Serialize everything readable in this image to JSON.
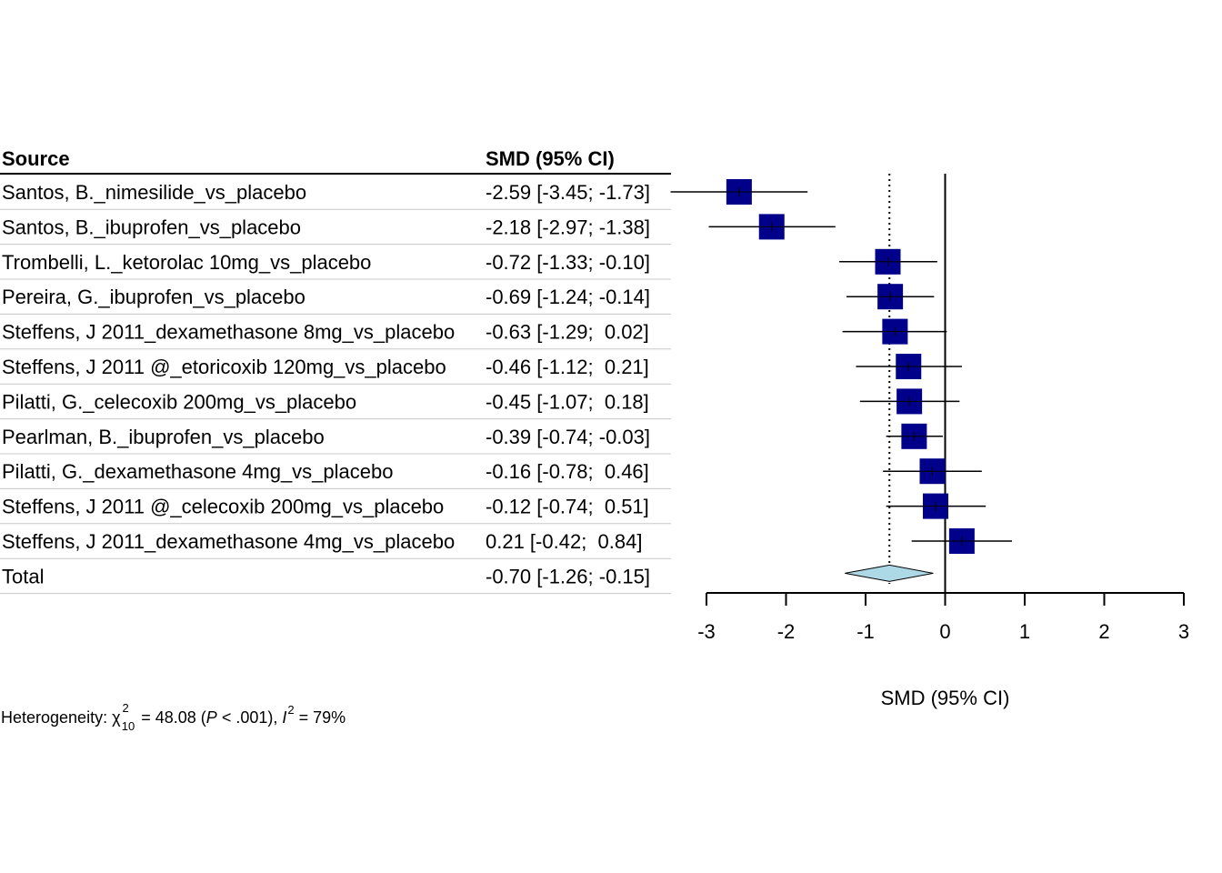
{
  "columns": {
    "source": "Source",
    "estimate": "SMD (95% CI)"
  },
  "chart_data": {
    "type": "forest",
    "xlabel": "SMD (95% CI)",
    "xlim": [
      -3,
      3
    ],
    "xticks": [
      "-3",
      "-2",
      "-1",
      "0",
      "1",
      "2",
      "3"
    ],
    "null_value": 0,
    "pooled_reference_line": -0.7,
    "studies": [
      {
        "source": "Santos, B._nimesilide_vs_placebo",
        "ci_text": "-2.59 [-3.45; -1.73]",
        "est": -2.59,
        "lo": -3.45,
        "hi": -1.73
      },
      {
        "source": "Santos, B._ibuprofen_vs_placebo",
        "ci_text": "-2.18 [-2.97; -1.38]",
        "est": -2.18,
        "lo": -2.97,
        "hi": -1.38
      },
      {
        "source": "Trombelli, L._ketorolac 10mg_vs_placebo",
        "ci_text": "-0.72 [-1.33; -0.10]",
        "est": -0.72,
        "lo": -1.33,
        "hi": -0.1
      },
      {
        "source": "Pereira, G._ibuprofen_vs_placebo",
        "ci_text": "-0.69 [-1.24; -0.14]",
        "est": -0.69,
        "lo": -1.24,
        "hi": -0.14
      },
      {
        "source": "Steffens, J 2011_dexamethasone 8mg_vs_placebo",
        "ci_text": "-0.63 [-1.29;  0.02]",
        "est": -0.63,
        "lo": -1.29,
        "hi": 0.02
      },
      {
        "source": "Steffens, J 2011 @_etoricoxib 120mg_vs_placebo",
        "ci_text": "-0.46 [-1.12;  0.21]",
        "est": -0.46,
        "lo": -1.12,
        "hi": 0.21
      },
      {
        "source": "Pilatti, G._celecoxib 200mg_vs_placebo",
        "ci_text": "-0.45 [-1.07;  0.18]",
        "est": -0.45,
        "lo": -1.07,
        "hi": 0.18
      },
      {
        "source": "Pearlman, B._ibuprofen_vs_placebo",
        "ci_text": "-0.39 [-0.74; -0.03]",
        "est": -0.39,
        "lo": -0.74,
        "hi": -0.03
      },
      {
        "source": "Pilatti, G._dexamethasone 4mg_vs_placebo",
        "ci_text": "-0.16 [-0.78;  0.46]",
        "est": -0.16,
        "lo": -0.78,
        "hi": 0.46
      },
      {
        "source": "Steffens, J 2011 @_celecoxib 200mg_vs_placebo",
        "ci_text": "-0.12 [-0.74;  0.51]",
        "est": -0.12,
        "lo": -0.74,
        "hi": 0.51
      },
      {
        "source": "Steffens, J 2011_dexamethasone 4mg_vs_placebo",
        "ci_text": "0.21 [-0.42;  0.84]",
        "est": 0.21,
        "lo": -0.42,
        "hi": 0.84
      }
    ],
    "total": {
      "source": "Total",
      "ci_text": "-0.70 [-1.26; -0.15]",
      "est": -0.7,
      "lo": -1.26,
      "hi": -0.15
    },
    "colors": {
      "square": "#00008B",
      "diamond": "#ADD8E6",
      "line": "#000000",
      "separator": "#C8C8C8"
    }
  },
  "heterogeneity": {
    "prefix": "Heterogeneity: ",
    "chi": "χ",
    "chi_sup": "2",
    "chi_sub": "10",
    "stat": " = 48.08 (",
    "p_italic": "P",
    "p_value": " < .001), ",
    "i_italic": "I",
    "i_sup": "2",
    "i_value": " = 79%"
  }
}
